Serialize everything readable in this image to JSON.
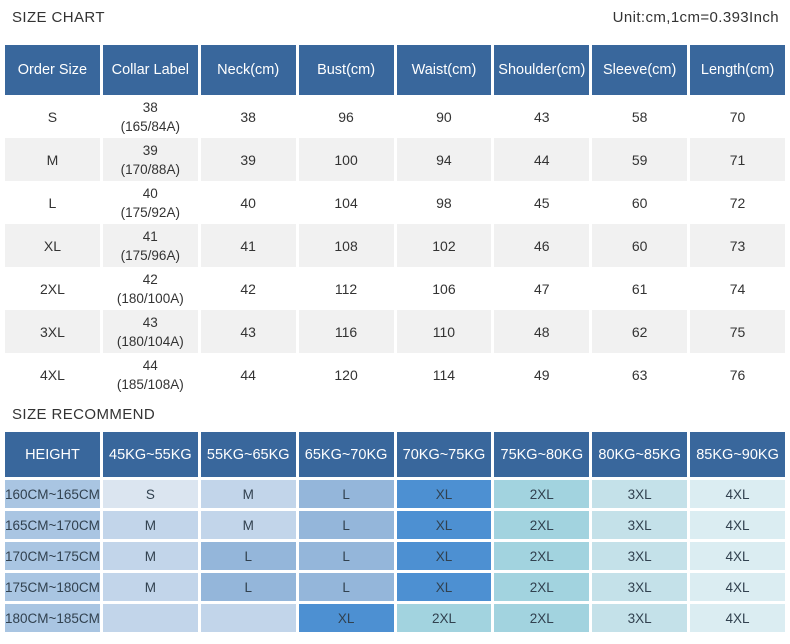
{
  "page": {
    "title": "SIZE CHART",
    "unit_note": "Unit:cm,1cm=0.393Inch",
    "recommend_title": "SIZE RECOMMEND"
  },
  "colors": {
    "header_blue": "#39679c",
    "row_alt": "#f1f1f1",
    "text_dark": "#333333",
    "rec_text": "#31414f",
    "height_cell": "#a9c5e2",
    "cell_s": "#dbe5f0",
    "cell_m": "#c2d5ea",
    "cell_l": "#94b6da",
    "cell_xl": "#4d90d2",
    "cell_2xl": "#a2d3df",
    "cell_3xl": "#c4e1e9",
    "cell_4xl": "#dbedf2",
    "cell_empty": "#c2d5ea"
  },
  "size_chart": {
    "columns": [
      "Order Size",
      "Collar Label",
      "Neck(cm)",
      "Bust(cm)",
      "Waist(cm)",
      "Shoulder(cm)",
      "Sleeve(cm)",
      "Length(cm)"
    ],
    "rows": [
      {
        "order_size": "S",
        "collar_size": "38",
        "collar_spec": "(165/84A)",
        "neck": "38",
        "bust": "96",
        "waist": "90",
        "shoulder": "43",
        "sleeve": "58",
        "length": "70"
      },
      {
        "order_size": "M",
        "collar_size": "39",
        "collar_spec": "(170/88A)",
        "neck": "39",
        "bust": "100",
        "waist": "94",
        "shoulder": "44",
        "sleeve": "59",
        "length": "71"
      },
      {
        "order_size": "L",
        "collar_size": "40",
        "collar_spec": "(175/92A)",
        "neck": "40",
        "bust": "104",
        "waist": "98",
        "shoulder": "45",
        "sleeve": "60",
        "length": "72"
      },
      {
        "order_size": "XL",
        "collar_size": "41",
        "collar_spec": "(175/96A)",
        "neck": "41",
        "bust": "108",
        "waist": "102",
        "shoulder": "46",
        "sleeve": "60",
        "length": "73"
      },
      {
        "order_size": "2XL",
        "collar_size": "42",
        "collar_spec": "(180/100A)",
        "neck": "42",
        "bust": "112",
        "waist": "106",
        "shoulder": "47",
        "sleeve": "61",
        "length": "74"
      },
      {
        "order_size": "3XL",
        "collar_size": "43",
        "collar_spec": "(180/104A)",
        "neck": "43",
        "bust": "116",
        "waist": "110",
        "shoulder": "48",
        "sleeve": "62",
        "length": "75"
      },
      {
        "order_size": "4XL",
        "collar_size": "44",
        "collar_spec": "(185/108A)",
        "neck": "44",
        "bust": "120",
        "waist": "114",
        "shoulder": "49",
        "sleeve": "63",
        "length": "76"
      }
    ]
  },
  "size_recommend": {
    "columns": [
      "HEIGHT",
      "45KG~55KG",
      "55KG~65KG",
      "65KG~70KG",
      "70KG~75KG",
      "75KG~80KG",
      "80KG~85KG",
      "85KG~90KG"
    ],
    "rows": [
      {
        "height": "160CM~165CM",
        "cells": [
          "S",
          "M",
          "L",
          "XL",
          "2XL",
          "3XL",
          "4XL"
        ]
      },
      {
        "height": "165CM~170CM",
        "cells": [
          "M",
          "M",
          "L",
          "XL",
          "2XL",
          "3XL",
          "4XL"
        ]
      },
      {
        "height": "170CM~175CM",
        "cells": [
          "M",
          "L",
          "L",
          "XL",
          "2XL",
          "3XL",
          "4XL"
        ]
      },
      {
        "height": "175CM~180CM",
        "cells": [
          "M",
          "L",
          "L",
          "XL",
          "2XL",
          "3XL",
          "4XL"
        ]
      },
      {
        "height": "180CM~185CM",
        "cells": [
          "",
          "",
          "XL",
          "2XL",
          "2XL",
          "3XL",
          "4XL"
        ]
      }
    ]
  }
}
